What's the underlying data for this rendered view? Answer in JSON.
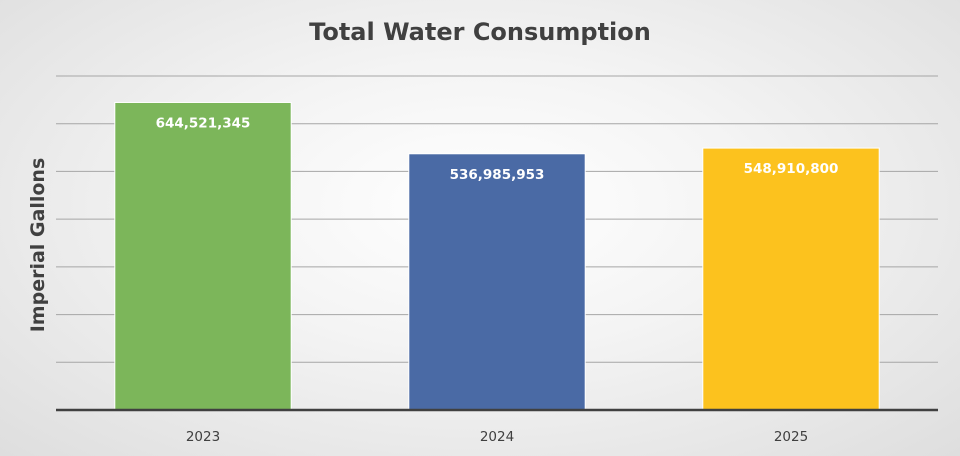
{
  "chart_data": {
    "type": "bar",
    "title": "Total Water Consumption",
    "xlabel": "",
    "ylabel": "Imperial Gallons",
    "categories": [
      "2023",
      "2024",
      "2025"
    ],
    "values": [
      644521345,
      536985953,
      548910800
    ],
    "data_labels": [
      "644,521,345",
      "536,985,953",
      "548,910,800"
    ],
    "colors": [
      "#7cb65a",
      "#4a6aa5",
      "#fcc21e"
    ],
    "ylim": [
      0,
      700000000
    ],
    "y_tick_step": 100000000,
    "y_tick_labels_shown": false,
    "grid": true,
    "legend": "none"
  }
}
